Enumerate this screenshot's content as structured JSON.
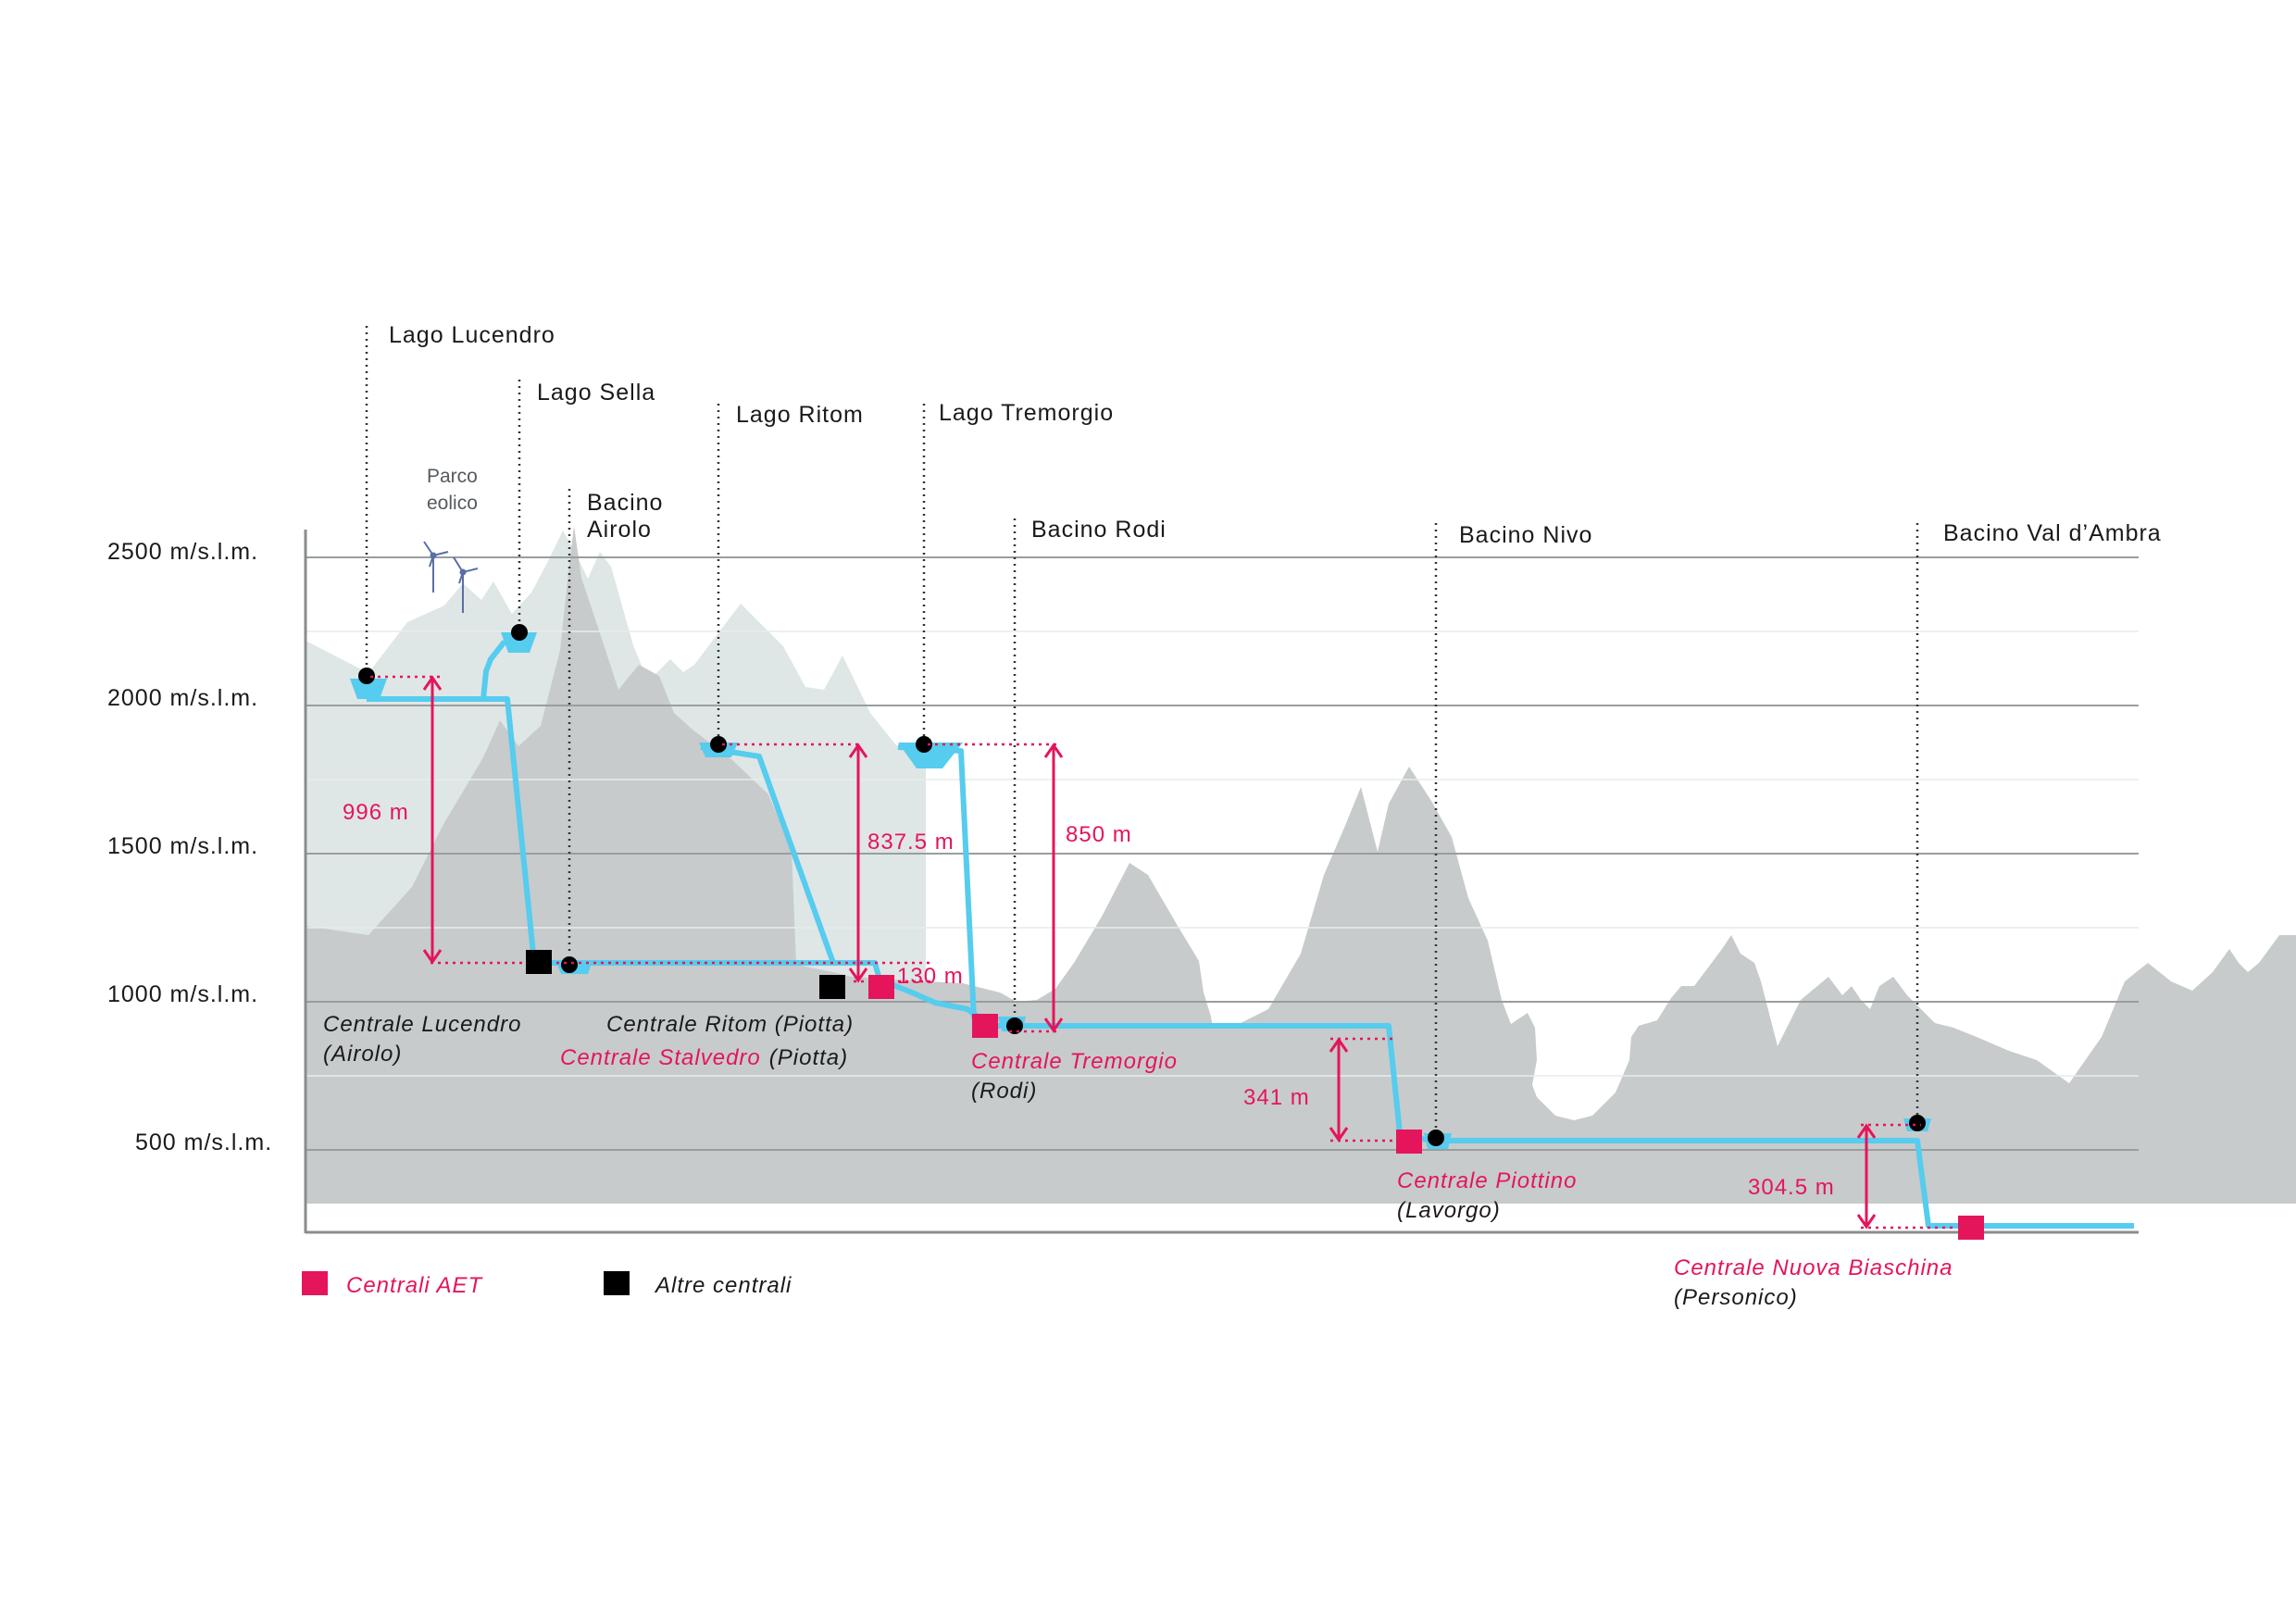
{
  "y_axis": {
    "unit": "m/s.l.m.",
    "ticks": [
      "2500 m/s.l.m.",
      "2000 m/s.l.m.",
      "1500 m/s.l.m.",
      "1000 m/s.l.m.",
      "500 m/s.l.m."
    ]
  },
  "lakes": {
    "lucendro": "Lago Lucendro",
    "sella": "Lago Sella",
    "ritom": "Lago Ritom",
    "tremorgio": "Lago Tremorgio"
  },
  "basins": {
    "airolo_1": "Bacino",
    "airolo_2": "Airolo",
    "rodi": "Bacino Rodi",
    "nivo": "Bacino Nivo",
    "val_ambra": "Bacino Val d’Ambra"
  },
  "wind_park": {
    "line1": "Parco",
    "line2": "eolico",
    "icon": "wind-turbine-icon"
  },
  "plants": {
    "lucendro_name": "Centrale Lucendro",
    "lucendro_loc": "(Airolo)",
    "ritom_name": "Centrale Ritom (Piotta)",
    "stalvedro_name": "Centrale Stalvedro",
    "stalvedro_loc": "(Piotta)",
    "tremorgio_name": "Centrale Tremorgio",
    "tremorgio_loc": "(Rodi)",
    "piottino_name": "Centrale Piottino",
    "piottino_loc": "(Lavorgo)",
    "biaschina_name": "Centrale Nuova Biaschina",
    "biaschina_loc": "(Personico)"
  },
  "heads": {
    "lucendro": "996 m",
    "ritom": "837.5 m",
    "stalvedro": "130 m",
    "tremorgio": "850 m",
    "piottino": "341 m",
    "biaschina": "304.5 m"
  },
  "legend": {
    "aet": "Centrali AET",
    "others": "Altre centrali"
  },
  "colors": {
    "aet_plant": "#e4155b",
    "other_plant": "#000000",
    "waterway": "#56ccee",
    "terrain_far": "#dfe6e6",
    "terrain_near": "#c7cbcb"
  }
}
